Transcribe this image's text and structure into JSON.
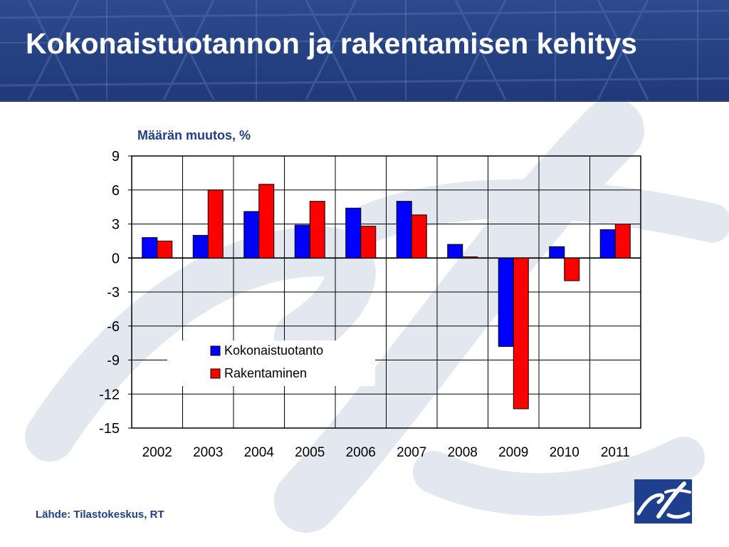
{
  "slide": {
    "title": "Kokonaistuotannon ja rakentamisen kehitys",
    "source": "Lähde: Tilastokeskus, RT"
  },
  "colors": {
    "header_blue": "#264384",
    "series_1": "#0000ff",
    "series_2": "#ff0000",
    "label_blue": "#1f3e8c",
    "logo_blue": "#1e3f8e"
  },
  "icons": {
    "logo": "rt-logo"
  },
  "chart_data": {
    "type": "bar",
    "title": "Määrän muutos, %",
    "xlabel": "",
    "ylabel": "",
    "categories": [
      "2002",
      "2003",
      "2004",
      "2005",
      "2006",
      "2007",
      "2008",
      "2009",
      "2010",
      "2011"
    ],
    "series": [
      {
        "name": "Kokonaistuotanto",
        "color": "#0000ff",
        "values": [
          1.8,
          2.0,
          4.1,
          2.9,
          4.4,
          5.0,
          1.2,
          -7.8,
          1.0,
          2.5
        ]
      },
      {
        "name": "Rakentaminen",
        "color": "#ff0000",
        "values": [
          1.5,
          6.0,
          6.5,
          5.0,
          2.8,
          3.8,
          0.1,
          -13.3,
          -2.0,
          3.0
        ]
      }
    ],
    "ylim": [
      -15,
      9
    ],
    "yticks": [
      9,
      6,
      3,
      0,
      -3,
      -6,
      -9,
      -12,
      -15
    ],
    "ytick_labels": [
      "9",
      "6",
      "3",
      "0",
      "-3",
      "-6",
      "-9",
      "-12",
      "-15"
    ],
    "grid": true,
    "legend": "inside-center"
  }
}
